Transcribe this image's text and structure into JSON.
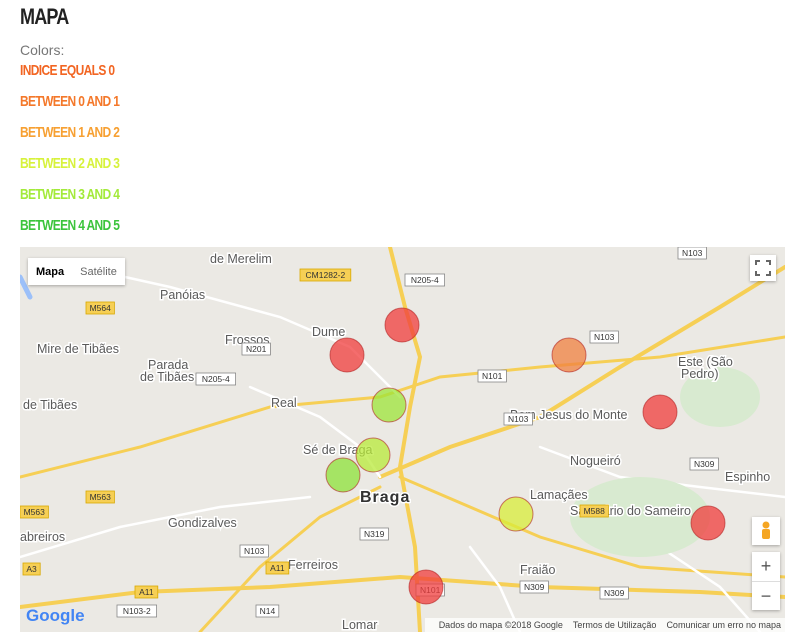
{
  "header": {
    "title": "MAPA"
  },
  "legend": {
    "caption": "Colors:",
    "items": [
      {
        "label": "INDICE EQUALS 0",
        "color": "#f26522"
      },
      {
        "label": "BETWEEN 0 AND 1",
        "color": "#f4782a"
      },
      {
        "label": "BETWEEN 1 AND 2",
        "color": "#f7a032"
      },
      {
        "label": "BETWEEN 2 AND 3",
        "color": "#d7f23c"
      },
      {
        "label": "BETWEEN 3 AND 4",
        "color": "#a3ea3a"
      },
      {
        "label": "BETWEEN 4 AND 5",
        "color": "#3cc43c"
      }
    ]
  },
  "map": {
    "controls": {
      "map": "Mapa",
      "satellite": "Satélite",
      "zoom_in": "+",
      "zoom_out": "−"
    },
    "labels": [
      "de Merelim",
      "Panóias",
      "Mire de Tibães",
      "Frossos",
      "Dume",
      "Parada",
      "de Tibães",
      "de Tibães",
      "Real",
      "Sé de Braga",
      "Braga",
      "Bom Jesus do Monte",
      "Este (São",
      "Pedro)",
      "Nogueiró",
      "Espinho",
      "Lamaçães",
      "Santuário do Sameiro",
      "Gondizalves",
      "abreiros",
      "Ferreiros",
      "Fraião",
      "Lomar"
    ],
    "road_labels": [
      "N103",
      "CM1282-2",
      "N205-4",
      "M564",
      "N201",
      "N205-4",
      "N101",
      "N103",
      "N103",
      "N309",
      "M563",
      "M563",
      "N319",
      "N103",
      "A11",
      "A11",
      "A3",
      "N309",
      "N309",
      "N101",
      "N103-2",
      "N14",
      "M588"
    ],
    "footer": {
      "logo": "Google",
      "data": "Dados do mapa ©2018 Google",
      "terms": "Termos de Utilização",
      "report": "Comunicar um erro no mapa"
    }
  }
}
